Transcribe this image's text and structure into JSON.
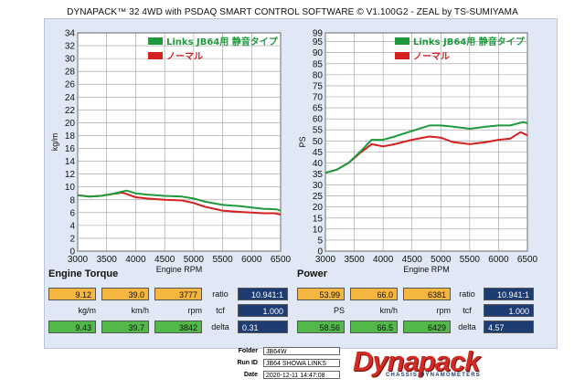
{
  "title": "DYNAPACK™ 32 4WD with PSDAQ SMART CONTROL SOFTWARE © V1.100G2 - ZEAL by TS-SUMIYAMA",
  "colors": {
    "series_a": "#1e9a3c",
    "series_b": "#d61f1f",
    "yellow": "#f4b63f",
    "green": "#52b84a",
    "navy": "#1d3c72",
    "panel": "#dfe8f4"
  },
  "torque_chart": {
    "name": "Engine Torque"
  },
  "power_chart": {
    "name": "Power"
  },
  "chart_data": [
    {
      "type": "line",
      "title": "Engine Torque",
      "xlabel": "Engine RPM",
      "ylabel": "kg/m",
      "xlim": [
        3000,
        6500
      ],
      "ylim": [
        0,
        34
      ],
      "xticks": [
        3000,
        3500,
        4000,
        4500,
        5000,
        5500,
        6000,
        6500
      ],
      "yticks": [
        0,
        2,
        4,
        6,
        8,
        10,
        12,
        14,
        16,
        18,
        20,
        22,
        24,
        26,
        28,
        30,
        32,
        34
      ],
      "grid": true,
      "legend_position": "top-right",
      "series": [
        {
          "name": "Links JB64用 静音タイプ",
          "color": "#1e9a3c",
          "x": [
            3000,
            3200,
            3400,
            3600,
            3842,
            4000,
            4200,
            4500,
            4800,
            5000,
            5200,
            5500,
            5800,
            6000,
            6200,
            6429,
            6500
          ],
          "y": [
            8.7,
            8.5,
            8.6,
            8.9,
            9.43,
            9.0,
            8.8,
            8.6,
            8.5,
            8.2,
            7.7,
            7.2,
            7.0,
            6.8,
            6.6,
            6.5,
            6.3
          ]
        },
        {
          "name": "ノーマル",
          "color": "#d61f1f",
          "x": [
            3000,
            3200,
            3400,
            3600,
            3777,
            4000,
            4200,
            4500,
            4800,
            5000,
            5200,
            5500,
            5800,
            6000,
            6200,
            6381,
            6500
          ],
          "y": [
            8.7,
            8.5,
            8.6,
            8.9,
            9.12,
            8.4,
            8.2,
            8.0,
            7.9,
            7.5,
            6.9,
            6.3,
            6.1,
            6.0,
            5.9,
            5.9,
            5.7
          ]
        }
      ]
    },
    {
      "type": "line",
      "title": "Power",
      "xlabel": "Engine RPM",
      "ylabel": "PS",
      "xlim": [
        3000,
        6500
      ],
      "ylim": [
        0,
        99
      ],
      "xticks": [
        3000,
        3500,
        4000,
        4500,
        5000,
        5500,
        6000,
        6500
      ],
      "yticks": [
        0,
        5,
        10,
        15,
        20,
        25,
        30,
        35,
        40,
        45,
        50,
        55,
        60,
        65,
        70,
        75,
        80,
        85,
        90,
        95,
        99
      ],
      "grid": true,
      "legend_position": "top-right",
      "series": [
        {
          "name": "Links JB64用 静音タイプ",
          "color": "#1e9a3c",
          "x": [
            3000,
            3200,
            3400,
            3600,
            3800,
            4000,
            4200,
            4500,
            4800,
            5000,
            5200,
            5500,
            5800,
            6000,
            6200,
            6429,
            6500
          ],
          "y": [
            35.5,
            37,
            40,
            45,
            50.5,
            50.5,
            52,
            54.5,
            57,
            57,
            56.5,
            55.5,
            56.5,
            57,
            57,
            58.56,
            58
          ]
        },
        {
          "name": "ノーマル",
          "color": "#d61f1f",
          "x": [
            3000,
            3200,
            3400,
            3600,
            3800,
            4000,
            4200,
            4500,
            4800,
            5000,
            5200,
            5500,
            5800,
            6000,
            6200,
            6381,
            6500
          ],
          "y": [
            35.5,
            37,
            40,
            44.5,
            48.5,
            47.5,
            48.5,
            50.5,
            52,
            51.5,
            49.5,
            48.5,
            49.5,
            50.5,
            51,
            53.99,
            52.5
          ]
        }
      ]
    }
  ],
  "torque_readout": {
    "row1": {
      "value": "9.12",
      "speed": "39.0",
      "rpm": "3777",
      "ratio_label": "ratio",
      "ratio": "10.941:1"
    },
    "units": {
      "value": "kg/m",
      "speed": "km/h",
      "rpm": "rpm",
      "tcf_label": "tcf",
      "tcf": "1.000"
    },
    "row2": {
      "value": "9.43",
      "speed": "39.7",
      "rpm": "3842",
      "delta_label": "delta",
      "delta": "0.31"
    }
  },
  "power_readout": {
    "row1": {
      "value": "53.99",
      "speed": "66.0",
      "rpm": "6381",
      "ratio_label": "ratio",
      "ratio": "10.941:1"
    },
    "units": {
      "value": "PS",
      "speed": "km/h",
      "rpm": "rpm",
      "tcf_label": "tcf",
      "tcf": "1.000"
    },
    "row2": {
      "value": "58.56",
      "speed": "66.5",
      "rpm": "6429",
      "delta_label": "delta",
      "delta": "4.57"
    }
  },
  "info": {
    "folder_label": "Folder",
    "folder": "JB64W",
    "run_label": "Run ID",
    "run": "JB64 SHOWA LINKS",
    "date_label": "Date",
    "date": "2020-12-11 14:47:08"
  },
  "logo": {
    "word": "Dynapack",
    "tagline": "CHASSIS DYNAMOMETERS"
  }
}
